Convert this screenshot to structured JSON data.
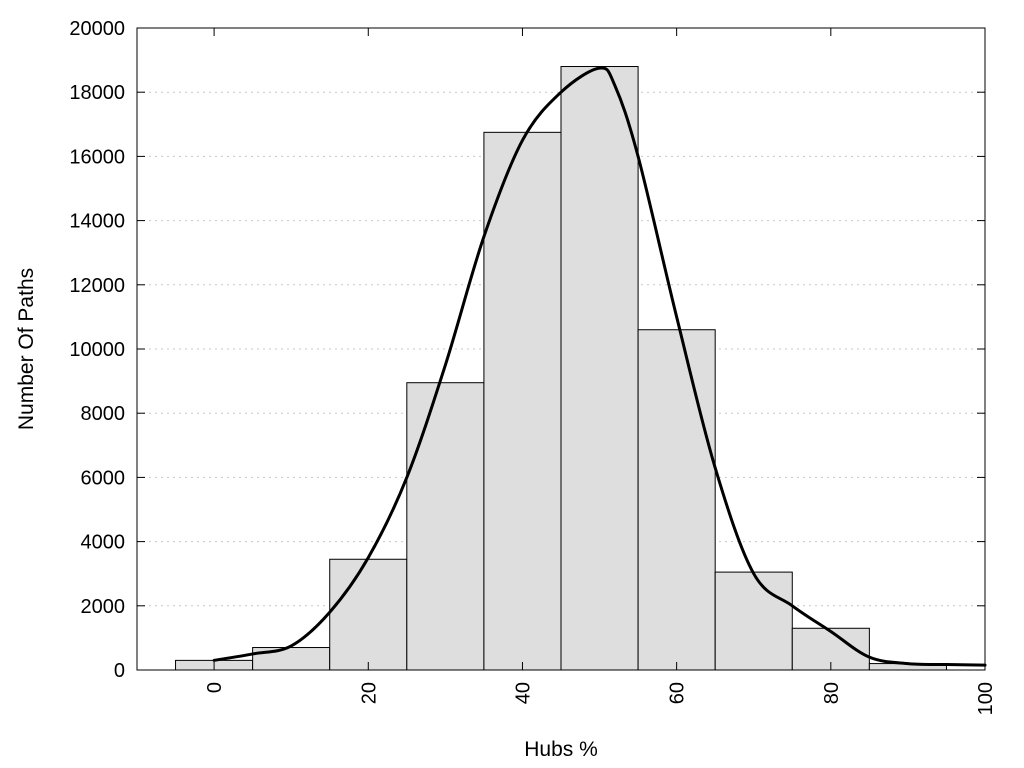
{
  "chart_data": {
    "type": "bar",
    "xlabel": "Hubs %",
    "ylabel": "Number Of Paths",
    "xlim": [
      -10,
      100
    ],
    "ylim": [
      0,
      20000
    ],
    "grid": true,
    "x_ticks": [
      "0",
      "20",
      "40",
      "60",
      "80",
      "100"
    ],
    "x_tick_values": [
      0,
      20,
      40,
      60,
      80,
      100
    ],
    "y_ticks": [
      "0",
      "2000",
      "4000",
      "6000",
      "8000",
      "10000",
      "12000",
      "14000",
      "16000",
      "18000",
      "20000"
    ],
    "y_tick_values": [
      0,
      2000,
      4000,
      6000,
      8000,
      10000,
      12000,
      14000,
      16000,
      18000,
      20000
    ],
    "bin_width": 10,
    "bin_centers": [
      0,
      10,
      20,
      30,
      40,
      50,
      60,
      70,
      80,
      90
    ],
    "values": [
      300,
      700,
      3450,
      8950,
      16750,
      18800,
      10600,
      3050,
      1300,
      200
    ],
    "curve": {
      "type": "line",
      "x": [
        0,
        5,
        10,
        15,
        20,
        25,
        30,
        35,
        40,
        45,
        50,
        52,
        55,
        60,
        65,
        70,
        75,
        80,
        85,
        90,
        95,
        100
      ],
      "y": [
        300,
        500,
        750,
        1800,
        3500,
        6000,
        9500,
        13500,
        16500,
        18000,
        18750,
        18200,
        16000,
        11000,
        6300,
        3000,
        2000,
        1200,
        400,
        200,
        170,
        150
      ]
    }
  }
}
